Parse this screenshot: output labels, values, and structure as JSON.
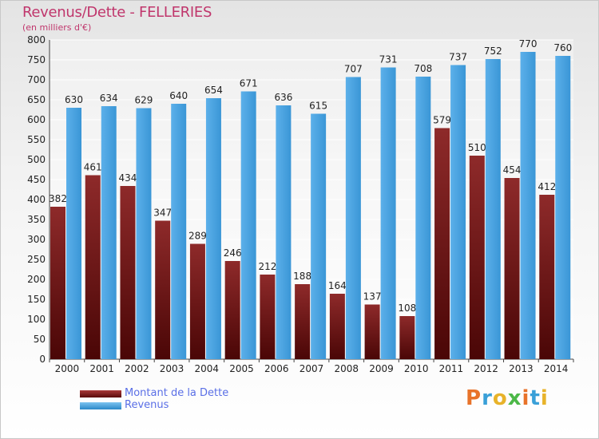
{
  "header": {
    "title": "Revenus/Dette - FELLERIES",
    "subtitle": "(en milliers d'€)"
  },
  "legend": {
    "items": [
      {
        "label": "Montant de la Dette",
        "color": "#7a1a1a"
      },
      {
        "label": "Revenus",
        "color": "#4aa3e0"
      }
    ]
  },
  "logo": {
    "letters": [
      "P",
      "r",
      "o",
      "x",
      "i",
      "t",
      "i"
    ],
    "colors": [
      "#e8732a",
      "#3aa0d8",
      "#e8b32a",
      "#4cb848",
      "#e8732a",
      "#3aa0d8",
      "#e8b32a"
    ]
  },
  "chart_data": {
    "type": "bar",
    "categories": [
      "2000",
      "2001",
      "2002",
      "2003",
      "2004",
      "2005",
      "2006",
      "2007",
      "2008",
      "2009",
      "2010",
      "2011",
      "2012",
      "2013",
      "2014"
    ],
    "series": [
      {
        "name": "Montant de la Dette",
        "color": "#7a1a1a",
        "values": [
          382,
          461,
          434,
          347,
          289,
          246,
          212,
          188,
          164,
          137,
          108,
          579,
          510,
          454,
          412
        ]
      },
      {
        "name": "Revenus",
        "color": "#4aa3e0",
        "values": [
          630,
          634,
          629,
          640,
          654,
          671,
          636,
          615,
          707,
          731,
          708,
          737,
          752,
          770,
          760
        ]
      }
    ],
    "ylim": [
      0,
      800
    ],
    "yticks": [
      0,
      50,
      100,
      150,
      200,
      250,
      300,
      350,
      400,
      450,
      500,
      550,
      600,
      650,
      700,
      750,
      800
    ],
    "grid": true,
    "legend_position": "bottom-left"
  }
}
